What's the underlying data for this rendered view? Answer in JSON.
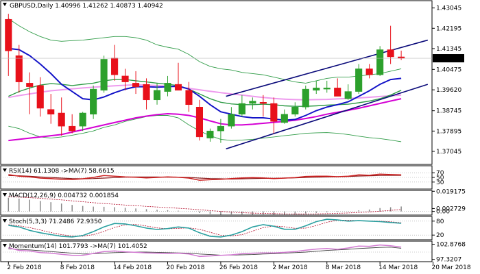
{
  "chart_data": {
    "type": "candlestick",
    "main": {
      "header": "GBPUSD,Daily  1.40996 1.41262 1.40873 1.40942",
      "ylim": [
        1.365,
        1.4335
      ],
      "y_ticks": [
        "1.43045",
        "1.42195",
        "1.41345",
        "1.40475",
        "1.39620",
        "1.38745",
        "1.37895",
        "1.37045"
      ],
      "last_price": "1.40942",
      "candles": [
        {
          "o": 1.4257,
          "h": 1.428,
          "l": 1.402,
          "c": 1.4125
        },
        {
          "o": 1.4105,
          "h": 1.415,
          "l": 1.395,
          "c": 1.3995
        },
        {
          "o": 1.399,
          "h": 1.4035,
          "l": 1.386,
          "c": 1.3975
        },
        {
          "o": 1.398,
          "h": 1.4015,
          "l": 1.385,
          "c": 1.3885
        },
        {
          "o": 1.388,
          "h": 1.3945,
          "l": 1.382,
          "c": 1.386
        },
        {
          "o": 1.3865,
          "h": 1.393,
          "l": 1.377,
          "c": 1.381
        },
        {
          "o": 1.381,
          "h": 1.386,
          "l": 1.378,
          "c": 1.379
        },
        {
          "o": 1.381,
          "h": 1.387,
          "l": 1.379,
          "c": 1.3865
        },
        {
          "o": 1.386,
          "h": 1.398,
          "l": 1.384,
          "c": 1.3965
        },
        {
          "o": 1.396,
          "h": 1.4105,
          "l": 1.395,
          "c": 1.409
        },
        {
          "o": 1.4095,
          "h": 1.415,
          "l": 1.4,
          "c": 1.4025
        },
        {
          "o": 1.402,
          "h": 1.405,
          "l": 1.396,
          "c": 1.3995
        },
        {
          "o": 1.399,
          "h": 1.404,
          "l": 1.3945,
          "c": 1.3975
        },
        {
          "o": 1.3985,
          "h": 1.401,
          "l": 1.388,
          "c": 1.392
        },
        {
          "o": 1.392,
          "h": 1.399,
          "l": 1.39,
          "c": 1.396
        },
        {
          "o": 1.3955,
          "h": 1.402,
          "l": 1.3935,
          "c": 1.399
        },
        {
          "o": 1.3985,
          "h": 1.4075,
          "l": 1.396,
          "c": 1.396
        },
        {
          "o": 1.396,
          "h": 1.3995,
          "l": 1.387,
          "c": 1.39
        },
        {
          "o": 1.389,
          "h": 1.392,
          "l": 1.375,
          "c": 1.3765
        },
        {
          "o": 1.376,
          "h": 1.38,
          "l": 1.3745,
          "c": 1.379
        },
        {
          "o": 1.379,
          "h": 1.384,
          "l": 1.374,
          "c": 1.381
        },
        {
          "o": 1.381,
          "h": 1.389,
          "l": 1.38,
          "c": 1.386
        },
        {
          "o": 1.386,
          "h": 1.394,
          "l": 1.385,
          "c": 1.3905
        },
        {
          "o": 1.3905,
          "h": 1.393,
          "l": 1.388,
          "c": 1.3915
        },
        {
          "o": 1.391,
          "h": 1.394,
          "l": 1.385,
          "c": 1.3905
        },
        {
          "o": 1.3905,
          "h": 1.393,
          "l": 1.378,
          "c": 1.383
        },
        {
          "o": 1.3825,
          "h": 1.388,
          "l": 1.382,
          "c": 1.386
        },
        {
          "o": 1.386,
          "h": 1.391,
          "l": 1.385,
          "c": 1.389
        },
        {
          "o": 1.389,
          "h": 1.398,
          "l": 1.388,
          "c": 1.3965
        },
        {
          "o": 1.396,
          "h": 1.4,
          "l": 1.3945,
          "c": 1.397
        },
        {
          "o": 1.3965,
          "h": 1.4,
          "l": 1.395,
          "c": 1.397
        },
        {
          "o": 1.397,
          "h": 1.401,
          "l": 1.3935,
          "c": 1.3935
        },
        {
          "o": 1.3925,
          "h": 1.3985,
          "l": 1.392,
          "c": 1.3955
        },
        {
          "o": 1.3955,
          "h": 1.407,
          "l": 1.3945,
          "c": 1.405
        },
        {
          "o": 1.405,
          "h": 1.407,
          "l": 1.401,
          "c": 1.4025
        },
        {
          "o": 1.4025,
          "h": 1.4145,
          "l": 1.402,
          "c": 1.413
        },
        {
          "o": 1.413,
          "h": 1.423,
          "l": 1.407,
          "c": 1.41
        },
        {
          "o": 1.41,
          "h": 1.4126,
          "l": 1.4087,
          "c": 1.4094
        }
      ],
      "bb_upper": [
        1.426,
        1.423,
        1.4205,
        1.4185,
        1.417,
        1.4165,
        1.4168,
        1.417,
        1.4175,
        1.418,
        1.4185,
        1.4185,
        1.418,
        1.417,
        1.415,
        1.414,
        1.4132,
        1.411,
        1.408,
        1.406,
        1.405,
        1.4045,
        1.4035,
        1.403,
        1.4025,
        1.4015,
        1.4005,
        1.3995,
        1.399,
        1.4,
        1.401,
        1.4015,
        1.4015,
        1.402,
        1.4025,
        1.403,
        1.404,
        1.405
      ],
      "bb_mid": [
        1.3935,
        1.3955,
        1.397,
        1.3982,
        1.3988,
        1.3985,
        1.398,
        1.3985,
        1.399,
        1.4,
        1.4005,
        1.4005,
        1.4,
        1.3995,
        1.399,
        1.3985,
        1.398,
        1.3965,
        1.3945,
        1.3925,
        1.391,
        1.3903,
        1.39,
        1.39,
        1.3902,
        1.39,
        1.3895,
        1.3893,
        1.3893,
        1.3895,
        1.3898,
        1.39,
        1.3902,
        1.3908,
        1.3915,
        1.3925,
        1.394,
        1.396
      ],
      "bb_lower": [
        1.381,
        1.38,
        1.378,
        1.3765,
        1.376,
        1.3765,
        1.3772,
        1.378,
        1.379,
        1.3805,
        1.3815,
        1.383,
        1.384,
        1.385,
        1.3855,
        1.3855,
        1.3845,
        1.3815,
        1.379,
        1.377,
        1.3755,
        1.375,
        1.3752,
        1.3755,
        1.376,
        1.3765,
        1.377,
        1.3775,
        1.378,
        1.3782,
        1.3783,
        1.378,
        1.3775,
        1.3768,
        1.3762,
        1.3758,
        1.3752,
        1.3745
      ],
      "ma_fast": [
        1.4135,
        1.413,
        1.4105,
        1.407,
        1.403,
        1.3985,
        1.3955,
        1.3925,
        1.392,
        1.3932,
        1.395,
        1.3965,
        1.3975,
        1.3975,
        1.3973,
        1.3975,
        1.3978,
        1.3965,
        1.3935,
        1.39,
        1.387,
        1.386,
        1.385,
        1.3845,
        1.3845,
        1.384,
        1.3835,
        1.3838,
        1.3855,
        1.3875,
        1.389,
        1.39,
        1.3912,
        1.3935,
        1.3958,
        1.3985,
        1.4005,
        1.401
      ],
      "ma_slow": [
        1.375,
        1.3755,
        1.376,
        1.3765,
        1.377,
        1.3775,
        1.3785,
        1.3795,
        1.3805,
        1.3815,
        1.3825,
        1.3835,
        1.3845,
        1.3852,
        1.3858,
        1.3862,
        1.386,
        1.3855,
        1.3845,
        1.3832,
        1.382,
        1.3815,
        1.3815,
        1.3818,
        1.3822,
        1.3826,
        1.383,
        1.3835,
        1.3842,
        1.385,
        1.386,
        1.3868,
        1.3876,
        1.3885,
        1.3895,
        1.3905,
        1.3915,
        1.3925
      ],
      "ma_pink": [
        1.393,
        1.3938,
        1.3945,
        1.3952,
        1.3958,
        1.3962,
        1.3966,
        1.397,
        1.3973,
        1.3976,
        1.3979,
        1.3981,
        1.3983,
        1.3982,
        1.398,
        1.3977,
        1.3973,
        1.3968,
        1.3962,
        1.3956,
        1.395,
        1.3945,
        1.394,
        1.3935,
        1.393,
        1.3926,
        1.3923,
        1.3921,
        1.392,
        1.3921,
        1.3922,
        1.3924,
        1.3926,
        1.3928,
        1.3931,
        1.3934,
        1.3937,
        1.394
      ],
      "channel_upper": {
        "from": [
          20.5,
          1.3935
        ],
        "to": [
          39.5,
          1.417
        ]
      },
      "channel_lower": {
        "from": [
          20.5,
          1.3715
        ],
        "to": [
          39.5,
          1.3985
        ]
      }
    },
    "rsi": {
      "label": "RSI(14) 61.1308 ->MA(7) 58.6615",
      "ticks": [
        "70",
        "50",
        "30"
      ],
      "values": [
        62,
        55,
        52,
        47,
        45,
        42,
        41,
        44,
        50,
        58,
        55,
        52,
        51,
        48,
        50,
        52,
        51,
        47,
        38,
        40,
        42,
        45,
        48,
        49,
        48,
        45,
        47,
        49,
        54,
        55,
        55,
        53,
        55,
        61,
        59,
        64,
        62,
        61
      ],
      "ma": [
        58,
        57,
        55,
        52,
        50,
        47,
        45,
        44,
        45,
        47,
        49,
        51,
        52,
        52,
        52,
        51,
        51,
        50,
        47,
        45,
        44,
        43,
        44,
        45,
        46,
        46,
        47,
        48,
        50,
        51,
        52,
        53,
        54,
        56,
        57,
        58,
        59,
        58.7
      ]
    },
    "macd": {
      "label": "MACD(12,26,9) 0.004732 0.001854",
      "ticks": [
        "0.019175",
        "0.002729",
        "0.00"
      ],
      "hist": [
        0.013,
        0.0122,
        0.0112,
        0.01,
        0.0088,
        0.0075,
        0.0062,
        0.0052,
        0.0046,
        0.0044,
        0.004,
        0.0034,
        0.0028,
        0.0021,
        0.0016,
        0.0012,
        0.0007,
        0.0,
        -0.0015,
        -0.0025,
        -0.0032,
        -0.0035,
        -0.0034,
        -0.0031,
        -0.0029,
        -0.0031,
        -0.003,
        -0.0027,
        -0.002,
        -0.0014,
        -0.0009,
        -0.0006,
        -0.0002,
        0.001,
        0.0018,
        0.0032,
        0.004,
        0.0047
      ],
      "signal": [
        0.014,
        0.0136,
        0.0131,
        0.0125,
        0.0118,
        0.011,
        0.0101,
        0.0092,
        0.0083,
        0.0075,
        0.0068,
        0.0061,
        0.0055,
        0.0048,
        0.0042,
        0.0036,
        0.003,
        0.0024,
        0.0016,
        0.0008,
        0.0,
        -0.0007,
        -0.0012,
        -0.0016,
        -0.0019,
        -0.0021,
        -0.0023,
        -0.0024,
        -0.0024,
        -0.0023,
        -0.0021,
        -0.0018,
        -0.0015,
        -0.001,
        -0.0005,
        0.0002,
        0.001,
        0.0018
      ]
    },
    "stoch": {
      "label": "Stoch(5,3,3) 71.2486 72.9350",
      "ticks": [
        "80",
        "20"
      ],
      "k": [
        62,
        55,
        40,
        30,
        22,
        15,
        12,
        18,
        35,
        55,
        70,
        68,
        60,
        50,
        44,
        48,
        55,
        50,
        30,
        15,
        12,
        20,
        35,
        55,
        65,
        58,
        45,
        45,
        60,
        78,
        88,
        85,
        80,
        82,
        80,
        78,
        74,
        71
      ],
      "d": [
        65,
        60,
        52,
        42,
        31,
        22,
        16,
        15,
        22,
        36,
        53,
        64,
        66,
        59,
        51,
        47,
        49,
        51,
        45,
        32,
        19,
        16,
        22,
        37,
        52,
        59,
        56,
        49,
        50,
        61,
        75,
        84,
        84,
        82,
        81,
        80,
        77,
        73
      ]
    },
    "momentum": {
      "label": "Momentum(14) 101.7793 ->MA(7) 101.4052",
      "ticks": [
        "102.8768",
        "97.3207"
      ],
      "values": [
        101.6,
        100.6,
        100.4,
        99.8,
        99.6,
        99.2,
        98.8,
        98.8,
        99.5,
        100.2,
        100.4,
        100.1,
        99.9,
        99.7,
        99.6,
        99.5,
        99.6,
        99.3,
        98.4,
        98.6,
        98.8,
        99.0,
        99.4,
        99.6,
        99.7,
        99.7,
        99.9,
        100.2,
        100.7,
        101.1,
        101.3,
        101.0,
        101.5,
        102.2,
        102.1,
        102.6,
        102.3,
        101.8
      ],
      "ma": [
        101.2,
        101.0,
        100.8,
        100.5,
        100.2,
        99.9,
        99.6,
        99.3,
        99.4,
        99.6,
        99.8,
        99.9,
        100.0,
        100.0,
        99.9,
        99.8,
        99.7,
        99.6,
        99.3,
        99.1,
        98.9,
        98.9,
        99.0,
        99.1,
        99.3,
        99.4,
        99.6,
        99.8,
        100.0,
        100.3,
        100.6,
        100.8,
        101.0,
        101.3,
        101.5,
        101.7,
        101.8,
        101.4
      ]
    },
    "x_labels": [
      "2 Feb 2018",
      "8 Feb 2018",
      "14 Feb 2018",
      "20 Feb 2018",
      "26 Feb 2018",
      "2 Mar 2018",
      "8 Mar 2018",
      "14 Mar 2018",
      "20 Mar 2018"
    ],
    "colors": {
      "bull": "#2ca02c",
      "bear": "#e8101a",
      "bb": "#2e9b46",
      "ma_fast": "#1414c8",
      "ma_slow": "#d400d4",
      "ma_pink": "#ee9bee",
      "channel": "#0a0a7a",
      "rsi": "#cc1f1f",
      "rsi_ma": "#8b1a1a",
      "macd_hist": "#888888",
      "macd_signal": "#b00020",
      "stoch_k": "#2aa0a0",
      "stoch_d": "#b00020",
      "mom": "#d27ad2",
      "mom_ma": "#404040"
    }
  }
}
